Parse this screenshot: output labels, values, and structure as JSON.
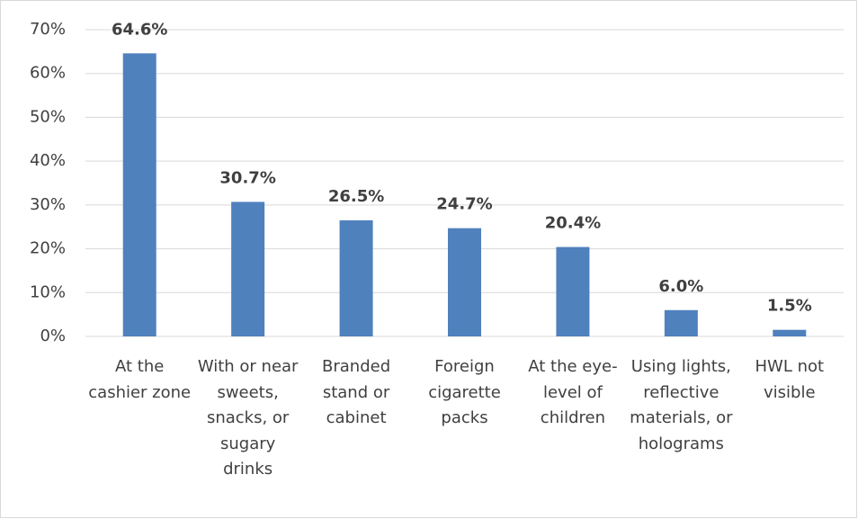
{
  "chart_data": {
    "type": "bar",
    "categories": [
      "At the cashier zone",
      "With or near sweets, snacks, or sugary drinks",
      "Branded stand or cabinet",
      "Foreign cigarette packs",
      "At the eye-level of children",
      "Using lights, reflective materials, or holograms",
      "HWL not visible"
    ],
    "values": [
      64.6,
      30.7,
      26.5,
      24.7,
      20.4,
      6.0,
      1.5
    ],
    "value_labels": [
      "64.6%",
      "30.7%",
      "26.5%",
      "24.7%",
      "20.4%",
      "6.0%",
      "1.5%"
    ],
    "color": "#4f81bd",
    "ylim": [
      0,
      70
    ],
    "yticks": [
      {
        "value": 0,
        "label": "0%"
      },
      {
        "value": 10,
        "label": "10%"
      },
      {
        "value": 20,
        "label": "20%"
      },
      {
        "value": 30,
        "label": "30%"
      },
      {
        "value": 40,
        "label": "40%"
      },
      {
        "value": 50,
        "label": "50%"
      },
      {
        "value": 60,
        "label": "60%"
      },
      {
        "value": 70,
        "label": "70%"
      }
    ],
    "grid": true
  }
}
